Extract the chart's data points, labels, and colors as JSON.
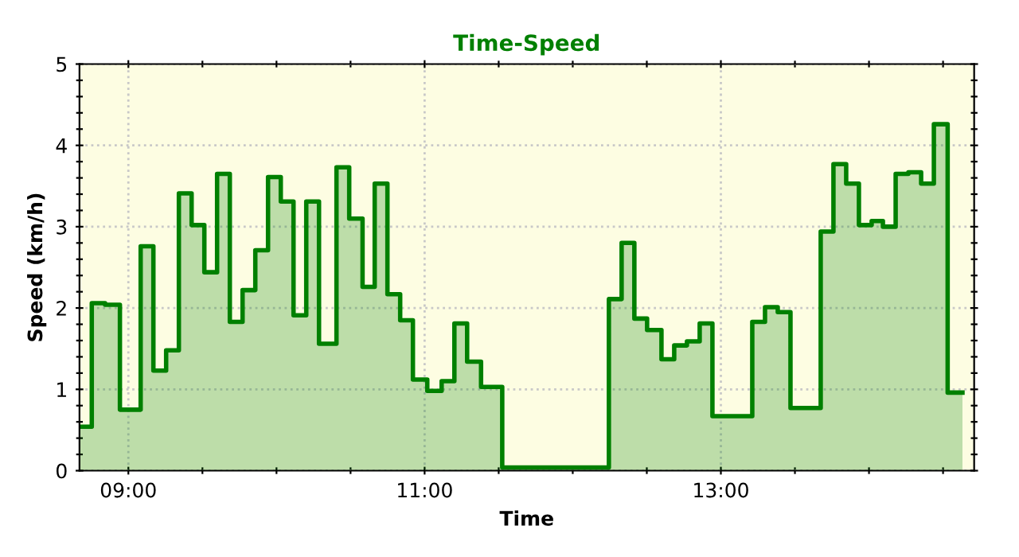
{
  "chart_data": {
    "type": "area",
    "title": "Time-Speed",
    "xlabel": "Time",
    "ylabel": "Speed (km/h)",
    "series": [
      {
        "color": "#008000",
        "x": [
          8.671,
          8.753,
          8.753,
          8.843,
          8.843,
          8.943,
          8.943,
          9.083,
          9.083,
          9.169,
          9.169,
          9.255,
          9.255,
          9.341,
          9.341,
          9.427,
          9.427,
          9.513,
          9.513,
          9.599,
          9.599,
          9.685,
          9.685,
          9.771,
          9.771,
          9.857,
          9.857,
          9.943,
          9.943,
          10.029,
          10.029,
          10.115,
          10.115,
          10.201,
          10.201,
          10.287,
          10.287,
          10.405,
          10.405,
          10.491,
          10.491,
          10.581,
          10.581,
          10.663,
          10.663,
          10.749,
          10.749,
          10.835,
          10.835,
          10.921,
          10.921,
          11.018,
          11.018,
          11.115,
          11.115,
          11.201,
          11.201,
          11.287,
          11.287,
          11.381,
          11.381,
          11.524,
          11.524,
          12.244,
          12.244,
          12.33,
          12.33,
          12.416,
          12.416,
          12.502,
          12.502,
          12.599,
          12.599,
          12.685,
          12.685,
          12.771,
          12.771,
          12.857,
          12.857,
          12.943,
          12.943,
          13.212,
          13.212,
          13.298,
          13.298,
          13.384,
          13.384,
          13.47,
          13.47,
          13.674,
          13.674,
          13.76,
          13.76,
          13.846,
          13.846,
          13.932,
          13.932,
          14.018,
          14.018,
          14.094,
          14.094,
          14.18,
          14.18,
          14.266,
          14.266,
          14.352,
          14.352,
          14.438,
          14.438,
          14.531,
          14.531,
          14.631
        ],
        "values": [
          0.54,
          0.54,
          2.06,
          2.06,
          2.04,
          2.04,
          0.75,
          0.75,
          2.76,
          2.76,
          1.23,
          1.23,
          1.48,
          1.48,
          3.41,
          3.41,
          3.02,
          3.02,
          2.44,
          2.44,
          3.65,
          3.65,
          1.83,
          1.83,
          2.22,
          2.22,
          2.71,
          2.71,
          3.61,
          3.61,
          3.31,
          3.31,
          1.91,
          1.91,
          3.31,
          3.31,
          1.56,
          1.56,
          3.73,
          3.73,
          3.1,
          3.1,
          2.26,
          2.26,
          3.53,
          3.53,
          2.17,
          2.17,
          1.85,
          1.85,
          1.12,
          1.12,
          0.98,
          0.98,
          1.1,
          1.1,
          1.81,
          1.81,
          1.34,
          1.34,
          1.03,
          1.03,
          0.04,
          0.04,
          2.11,
          2.11,
          2.8,
          2.8,
          1.87,
          1.87,
          1.73,
          1.73,
          1.37,
          1.37,
          1.54,
          1.54,
          1.59,
          1.59,
          1.81,
          1.81,
          0.67,
          0.67,
          1.83,
          1.83,
          2.01,
          2.01,
          1.95,
          1.95,
          0.77,
          0.77,
          2.94,
          2.94,
          3.77,
          3.77,
          3.53,
          3.53,
          3.02,
          3.02,
          3.07,
          3.07,
          3.0,
          3.0,
          3.65,
          3.65,
          3.67,
          3.67,
          3.53,
          3.53,
          4.26,
          4.26,
          0.96,
          0.96
        ]
      }
    ],
    "xlim": [
      8.67,
      14.71
    ],
    "xticks": [
      {
        "value": 9,
        "label": "09:00"
      },
      {
        "value": 9.5,
        "label": null
      },
      {
        "value": 10,
        "label": null
      },
      {
        "value": 10.5,
        "label": null
      },
      {
        "value": 11,
        "label": "11:00"
      },
      {
        "value": 11.5,
        "label": null
      },
      {
        "value": 12,
        "label": null
      },
      {
        "value": 12.5,
        "label": null
      },
      {
        "value": 13,
        "label": "13:00"
      },
      {
        "value": 13.5,
        "label": null
      },
      {
        "value": 14,
        "label": null
      },
      {
        "value": 14.5,
        "label": null
      }
    ],
    "ylim": [
      0,
      5
    ],
    "yticks": [
      0,
      {
        "value": 0.2,
        "label": null
      },
      {
        "value": 0.4,
        "label": null
      },
      {
        "value": 0.6,
        "label": null
      },
      {
        "value": 0.8,
        "label": null
      },
      1,
      {
        "value": 1.2,
        "label": null
      },
      {
        "value": 1.4,
        "label": null
      },
      {
        "value": 1.6,
        "label": null
      },
      {
        "value": 1.8,
        "label": null
      },
      2,
      {
        "value": 2.2,
        "label": null
      },
      {
        "value": 2.4,
        "label": null
      },
      {
        "value": 2.6,
        "label": null
      },
      {
        "value": 2.8,
        "label": null
      },
      3,
      {
        "value": 3.2,
        "label": null
      },
      {
        "value": 3.4,
        "label": null
      },
      {
        "value": 3.6,
        "label": null
      },
      {
        "value": 3.8,
        "label": null
      },
      4,
      {
        "value": 4.2,
        "label": null
      },
      {
        "value": 4.4,
        "label": null
      },
      {
        "value": 4.6,
        "label": null
      },
      {
        "value": 4.8,
        "label": null
      },
      5
    ],
    "grid": true,
    "marker": "none",
    "line_style": "solid"
  }
}
